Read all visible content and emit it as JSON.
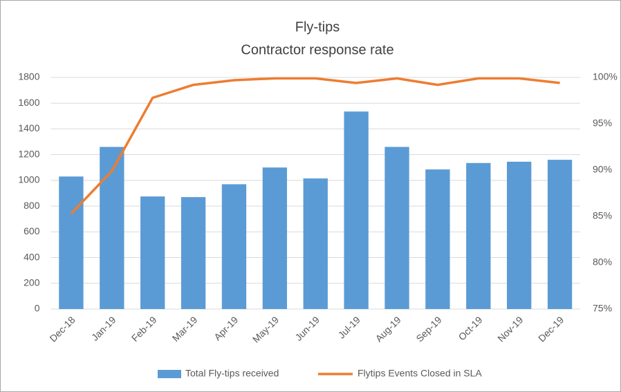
{
  "chart_data": {
    "type": "bar",
    "title": "Fly-tips",
    "subtitle": "Contractor response rate",
    "categories": [
      "Dec-18",
      "Jan-19",
      "Feb-19",
      "Mar-19",
      "Apr-19",
      "May-19",
      "Jun-19",
      "Jul-19",
      "Aug-19",
      "Sep-19",
      "Oct-19",
      "Nov-19",
      "Dec-19"
    ],
    "series": [
      {
        "name": "Total Fly-tips received",
        "type": "bar",
        "color": "#5b9bd5",
        "values": [
          1030,
          1260,
          875,
          870,
          970,
          1100,
          1015,
          1535,
          1260,
          1085,
          1135,
          1145,
          1160
        ]
      },
      {
        "name": "Flytips Events Closed in SLA",
        "type": "line",
        "axis": "y2",
        "color": "#ed7d31",
        "values": [
          85.3,
          89.9,
          97.8,
          99.2,
          99.7,
          99.9,
          99.9,
          99.4,
          99.9,
          99.2,
          99.9,
          99.9,
          99.4
        ]
      }
    ],
    "ylim": [
      0,
      1800
    ],
    "yticks": [
      0,
      200,
      400,
      600,
      800,
      1000,
      1200,
      1400,
      1600,
      1800
    ],
    "y2lim": [
      75,
      100
    ],
    "y2ticks": [
      {
        "value": 75,
        "label": "75%"
      },
      {
        "value": 80,
        "label": "80%"
      },
      {
        "value": 85,
        "label": "85%"
      },
      {
        "value": 90,
        "label": "90%"
      },
      {
        "value": 95,
        "label": "95%"
      },
      {
        "value": 100,
        "label": "100%"
      }
    ],
    "grid": true,
    "legend": "bottom"
  }
}
